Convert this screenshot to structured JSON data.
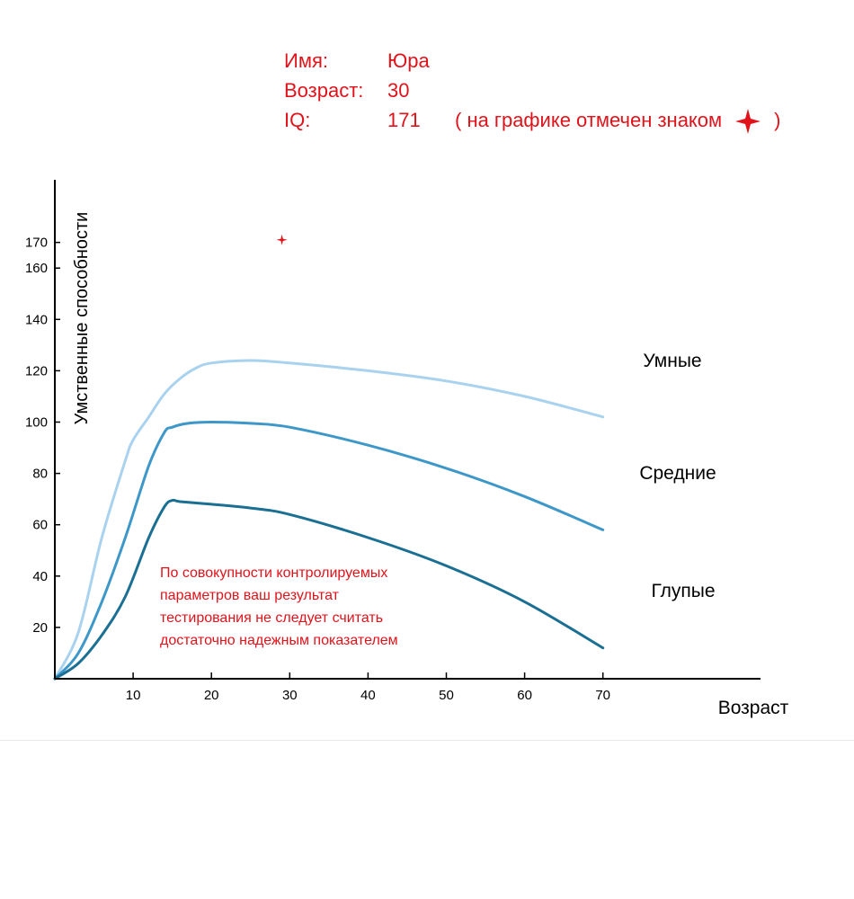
{
  "info": {
    "name_label": "Имя:",
    "name_value": "Юра",
    "age_label": "Возраст:",
    "age_value": "30",
    "iq_label": "IQ:",
    "iq_value": "171",
    "note_prefix": "( на графике отмечен знаком",
    "note_suffix": ")"
  },
  "colors": {
    "accent_red": "#e0131b",
    "smart_line": "#a9d2ef",
    "average_line": "#3d97c8",
    "dumb_line": "#1a6f93",
    "axis": "#000000"
  },
  "chart_data": {
    "type": "line",
    "title": "",
    "xlabel": "Возраст",
    "ylabel": "Умственные способности",
    "xlim": [
      0,
      80
    ],
    "ylim": [
      0,
      178
    ],
    "x_ticks": [
      10,
      20,
      30,
      40,
      50,
      60,
      70
    ],
    "y_ticks": [
      20,
      40,
      60,
      80,
      100,
      120,
      140,
      160,
      170
    ],
    "grid": false,
    "series": [
      {
        "name": "Умные",
        "x": [
          0,
          3,
          6,
          9,
          10,
          12,
          14,
          16,
          18,
          20,
          25,
          30,
          40,
          50,
          60,
          70
        ],
        "y": [
          0,
          18,
          55,
          85,
          93,
          102,
          111,
          117,
          121,
          123,
          124,
          123,
          120,
          116,
          110,
          102
        ]
      },
      {
        "name": "Средние",
        "x": [
          0,
          3,
          6,
          9,
          12,
          14,
          15,
          17,
          20,
          25,
          30,
          40,
          50,
          60,
          70
        ],
        "y": [
          0,
          10,
          30,
          55,
          83,
          96,
          98,
          99.5,
          100,
          99.5,
          98,
          91,
          82,
          71,
          58
        ]
      },
      {
        "name": "Глупые",
        "x": [
          0,
          3,
          6,
          9,
          12,
          14,
          15,
          16,
          20,
          25,
          30,
          40,
          50,
          60,
          70
        ],
        "y": [
          0,
          6,
          17,
          32,
          55,
          67,
          69.5,
          69,
          68,
          66.5,
          64,
          55,
          44,
          30,
          12
        ]
      }
    ],
    "marker": {
      "x": 29,
      "y": 171
    },
    "annotation": [
      "По совокупности контролируемых",
      "параметров ваш результат",
      "тестирования не следует считать",
      "достаточно надежным показателем"
    ]
  }
}
